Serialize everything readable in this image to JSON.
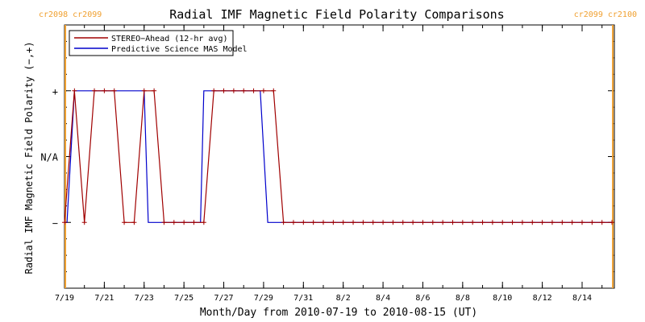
{
  "chart_data": {
    "type": "line",
    "title": "Radial IMF Magnetic Field Polarity Comparisons",
    "xlabel": "Month/Day from 2010-07-19 to 2010-08-15 (UT)",
    "ylabel": "Radial IMF Magnetic Field Polarity (−,+)",
    "x_range": [
      "2010-07-19",
      "2010-08-15"
    ],
    "y_range": [
      -2,
      2
    ],
    "x_ticks": [
      {
        "date": "2010-07-19",
        "label": "7/19"
      },
      {
        "date": "2010-07-21",
        "label": "7/21"
      },
      {
        "date": "2010-07-23",
        "label": "7/23"
      },
      {
        "date": "2010-07-25",
        "label": "7/25"
      },
      {
        "date": "2010-07-27",
        "label": "7/27"
      },
      {
        "date": "2010-07-29",
        "label": "7/29"
      },
      {
        "date": "2010-07-31",
        "label": "7/31"
      },
      {
        "date": "2010-08-02",
        "label": "8/2"
      },
      {
        "date": "2010-08-04",
        "label": "8/4"
      },
      {
        "date": "2010-08-06",
        "label": "8/6"
      },
      {
        "date": "2010-08-08",
        "label": "8/8"
      },
      {
        "date": "2010-08-10",
        "label": "8/10"
      },
      {
        "date": "2010-08-12",
        "label": "8/12"
      },
      {
        "date": "2010-08-14",
        "label": "8/14"
      }
    ],
    "y_ticks": [
      {
        "value": 1,
        "label": "+"
      },
      {
        "value": 0,
        "label": "N/A"
      },
      {
        "value": -1,
        "label": "−"
      }
    ],
    "carrington_markers": [
      {
        "date": "2010-07-19 01:00",
        "label": "cr2098 cr2099",
        "label_pos": "top-left"
      },
      {
        "date": "2010-08-15 13:00",
        "label": "cr2099 cr2100",
        "label_pos": "top-right"
      }
    ],
    "marker_color": "#f0a030",
    "legend_position": "top-left",
    "series": [
      {
        "name": "STEREO−Ahead (12-hr avg)",
        "color": "#a00000",
        "marker": "plus",
        "points": [
          [
            "2010-07-19 00:00",
            -1
          ],
          [
            "2010-07-19 12:00",
            1
          ],
          [
            "2010-07-20 00:00",
            -1
          ],
          [
            "2010-07-20 12:00",
            1
          ],
          [
            "2010-07-21 00:00",
            1
          ],
          [
            "2010-07-21 12:00",
            1
          ],
          [
            "2010-07-22 00:00",
            -1
          ],
          [
            "2010-07-22 12:00",
            -1
          ],
          [
            "2010-07-23 00:00",
            1
          ],
          [
            "2010-07-23 12:00",
            1
          ],
          [
            "2010-07-24 00:00",
            -1
          ],
          [
            "2010-07-24 12:00",
            -1
          ],
          [
            "2010-07-25 00:00",
            -1
          ],
          [
            "2010-07-25 12:00",
            -1
          ],
          [
            "2010-07-26 00:00",
            -1
          ],
          [
            "2010-07-26 12:00",
            1
          ],
          [
            "2010-07-27 00:00",
            1
          ],
          [
            "2010-07-27 12:00",
            1
          ],
          [
            "2010-07-28 00:00",
            1
          ],
          [
            "2010-07-28 12:00",
            1
          ],
          [
            "2010-07-29 00:00",
            1
          ],
          [
            "2010-07-29 12:00",
            1
          ],
          [
            "2010-07-30 00:00",
            -1
          ],
          [
            "2010-07-30 12:00",
            -1
          ],
          [
            "2010-07-31 00:00",
            -1
          ],
          [
            "2010-07-31 12:00",
            -1
          ],
          [
            "2010-08-01 00:00",
            -1
          ],
          [
            "2010-08-01 12:00",
            -1
          ],
          [
            "2010-08-02 00:00",
            -1
          ],
          [
            "2010-08-02 12:00",
            -1
          ],
          [
            "2010-08-03 00:00",
            -1
          ],
          [
            "2010-08-03 12:00",
            -1
          ],
          [
            "2010-08-04 00:00",
            -1
          ],
          [
            "2010-08-04 12:00",
            -1
          ],
          [
            "2010-08-05 00:00",
            -1
          ],
          [
            "2010-08-05 12:00",
            -1
          ],
          [
            "2010-08-06 00:00",
            -1
          ],
          [
            "2010-08-06 12:00",
            -1
          ],
          [
            "2010-08-07 00:00",
            -1
          ],
          [
            "2010-08-07 12:00",
            -1
          ],
          [
            "2010-08-08 00:00",
            -1
          ],
          [
            "2010-08-08 12:00",
            -1
          ],
          [
            "2010-08-09 00:00",
            -1
          ],
          [
            "2010-08-09 12:00",
            -1
          ],
          [
            "2010-08-10 00:00",
            -1
          ],
          [
            "2010-08-10 12:00",
            -1
          ],
          [
            "2010-08-11 00:00",
            -1
          ],
          [
            "2010-08-11 12:00",
            -1
          ],
          [
            "2010-08-12 00:00",
            -1
          ],
          [
            "2010-08-12 12:00",
            -1
          ],
          [
            "2010-08-13 00:00",
            -1
          ],
          [
            "2010-08-13 12:00",
            -1
          ],
          [
            "2010-08-14 00:00",
            -1
          ],
          [
            "2010-08-14 12:00",
            -1
          ],
          [
            "2010-08-15 00:00",
            -1
          ],
          [
            "2010-08-15 12:00",
            -1
          ]
        ]
      },
      {
        "name": "Predictive Science MAS Model",
        "color": "#0000cc",
        "marker": "none",
        "points": [
          [
            "2010-07-19 00:00",
            -1
          ],
          [
            "2010-07-19 03:00",
            -1
          ],
          [
            "2010-07-19 12:00",
            1
          ],
          [
            "2010-07-23 00:00",
            1
          ],
          [
            "2010-07-23 05:00",
            -1
          ],
          [
            "2010-07-25 20:00",
            -1
          ],
          [
            "2010-07-26 00:00",
            1
          ],
          [
            "2010-07-28 20:00",
            1
          ],
          [
            "2010-07-29 05:00",
            -1
          ],
          [
            "2010-08-15 12:00",
            -1
          ]
        ]
      }
    ]
  }
}
